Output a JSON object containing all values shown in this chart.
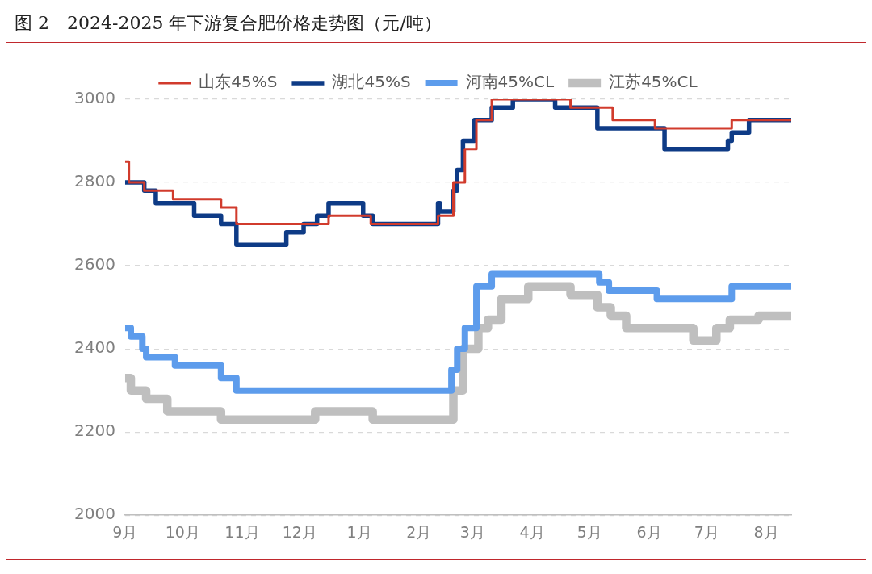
{
  "chart_data": {
    "type": "step",
    "title": "图 2　2024-2025 年下游复合肥价格走势图（元/吨）",
    "xlim": [
      "2024-09-01",
      "2025-08-14"
    ],
    "xticks": [
      {
        "value": "2024-09",
        "label": "9月"
      },
      {
        "value": "2024-10",
        "label": "10月"
      },
      {
        "value": "2024-11",
        "label": "11月"
      },
      {
        "value": "2024-12",
        "label": "12月"
      },
      {
        "value": "2025-01",
        "label": "1月"
      },
      {
        "value": "2025-02",
        "label": "2月"
      },
      {
        "value": "2025-03",
        "label": "3月"
      },
      {
        "value": "2025-04",
        "label": "4月"
      },
      {
        "value": "2025-05",
        "label": "5月"
      },
      {
        "value": "2025-06",
        "label": "6月"
      },
      {
        "value": "2025-07",
        "label": "7月"
      },
      {
        "value": "2025-08",
        "label": "8月"
      }
    ],
    "ylim": [
      2000,
      3000
    ],
    "yticks": [
      2000,
      2200,
      2400,
      2600,
      2800,
      3000
    ],
    "grid": "y",
    "legend": "top",
    "marker": "none",
    "line_style": "solid",
    "series": [
      {
        "name": "山东45%S",
        "color": "#d13b2c",
        "x": [
          "2024-09-01",
          "2024-09-03",
          "2024-09-11",
          "2024-09-26",
          "2024-10-21",
          "2024-10-29",
          "2024-12-16",
          "2025-01-07",
          "2025-02-11",
          "2025-02-19",
          "2025-02-25",
          "2025-03-03",
          "2025-03-11",
          "2025-04-21",
          "2025-05-13",
          "2025-06-04",
          "2025-07-14",
          "2025-08-14"
        ],
        "values": [
          2850,
          2800,
          2780,
          2760,
          2740,
          2700,
          2720,
          2700,
          2720,
          2800,
          2880,
          2950,
          3000,
          2980,
          2950,
          2930,
          2950,
          2950
        ]
      },
      {
        "name": "湖北45%S",
        "color": "#0e3b86",
        "x": [
          "2024-09-01",
          "2024-09-11",
          "2024-09-17",
          "2024-10-07",
          "2024-10-21",
          "2024-10-29",
          "2024-11-24",
          "2024-12-03",
          "2024-12-10",
          "2024-12-16",
          "2025-01-03",
          "2025-01-08",
          "2025-02-11",
          "2025-02-12",
          "2025-02-19",
          "2025-02-21",
          "2025-02-24",
          "2025-03-02",
          "2025-03-11",
          "2025-03-22",
          "2025-04-13",
          "2025-05-05",
          "2025-06-09",
          "2025-07-12",
          "2025-07-14",
          "2025-07-23",
          "2025-08-14"
        ],
        "values": [
          2800,
          2780,
          2750,
          2720,
          2700,
          2650,
          2680,
          2700,
          2720,
          2750,
          2720,
          2700,
          2750,
          2730,
          2780,
          2830,
          2900,
          2950,
          2980,
          3000,
          2980,
          2930,
          2880,
          2900,
          2920,
          2950,
          2950
        ]
      },
      {
        "name": "河南45%CL",
        "color": "#5d9cec",
        "x": [
          "2024-09-01",
          "2024-09-04",
          "2024-09-10",
          "2024-09-12",
          "2024-09-27",
          "2024-10-21",
          "2024-10-29",
          "2025-02-18",
          "2025-02-21",
          "2025-02-25",
          "2025-03-03",
          "2025-03-11",
          "2025-05-06",
          "2025-05-11",
          "2025-06-05",
          "2025-07-14",
          "2025-08-14"
        ],
        "values": [
          2450,
          2430,
          2400,
          2380,
          2360,
          2330,
          2300,
          2350,
          2400,
          2450,
          2550,
          2580,
          2560,
          2540,
          2520,
          2550,
          2550
        ]
      },
      {
        "name": "江苏45%CL",
        "color": "#bfbfbf",
        "x": [
          "2024-09-01",
          "2024-09-04",
          "2024-09-12",
          "2024-09-23",
          "2024-10-21",
          "2024-12-09",
          "2025-01-08",
          "2025-02-19",
          "2025-02-24",
          "2025-03-04",
          "2025-03-09",
          "2025-03-16",
          "2025-03-30",
          "2025-04-21",
          "2025-05-05",
          "2025-05-12",
          "2025-05-20",
          "2025-06-24",
          "2025-07-06",
          "2025-07-13",
          "2025-07-28",
          "2025-08-14"
        ],
        "values": [
          2330,
          2300,
          2280,
          2250,
          2230,
          2250,
          2230,
          2300,
          2400,
          2450,
          2470,
          2520,
          2550,
          2530,
          2500,
          2480,
          2450,
          2420,
          2450,
          2470,
          2480,
          2480
        ]
      }
    ]
  }
}
